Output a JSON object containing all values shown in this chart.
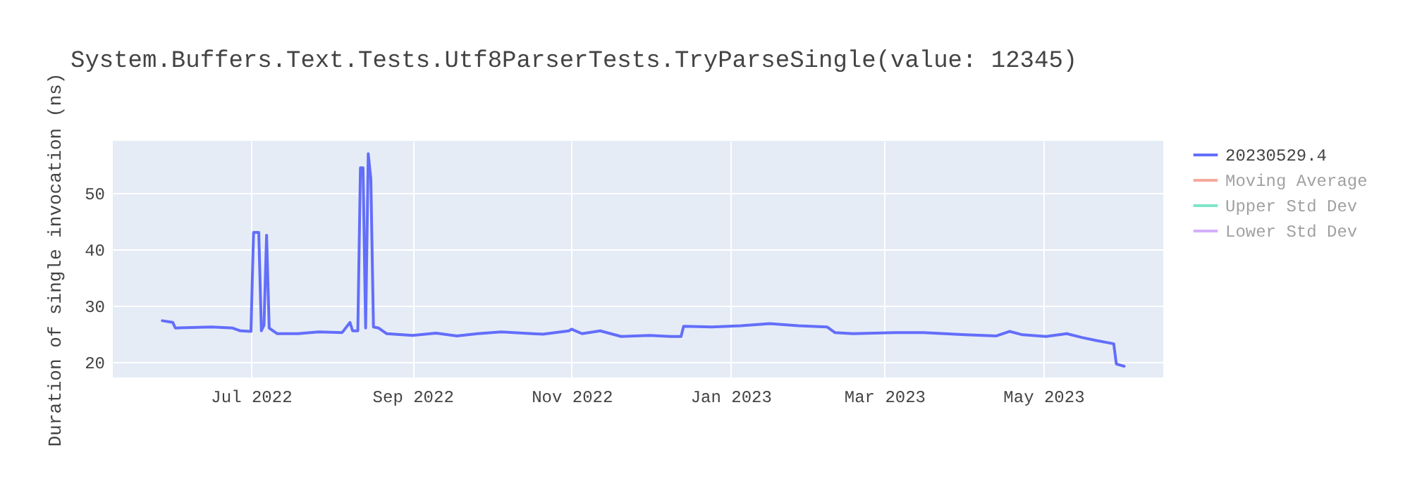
{
  "chart_data": {
    "type": "line",
    "title": "System.Buffers.Text.Tests.Utf8ParserTests.TryParseSingle(value: 12345)",
    "ylabel": "Duration of single invocation (ns)",
    "x": [
      "2022-05-28",
      "2022-06-01",
      "2022-06-02",
      "2022-06-16",
      "2022-06-24",
      "2022-06-27",
      "2022-07-01",
      "2022-07-02",
      "2022-07-04",
      "2022-07-05",
      "2022-07-06",
      "2022-07-07",
      "2022-07-08",
      "2022-07-11",
      "2022-07-19",
      "2022-07-27",
      "2022-08-05",
      "2022-08-08",
      "2022-08-09",
      "2022-08-11",
      "2022-08-12",
      "2022-08-13",
      "2022-08-14",
      "2022-08-15",
      "2022-08-16",
      "2022-08-17",
      "2022-08-19",
      "2022-08-22",
      "2022-09-01",
      "2022-09-10",
      "2022-09-18",
      "2022-09-26",
      "2022-10-05",
      "2022-10-21",
      "2022-10-31",
      "2022-11-01",
      "2022-11-05",
      "2022-11-12",
      "2022-11-20",
      "2022-12-01",
      "2022-12-09",
      "2022-12-13",
      "2022-12-14",
      "2022-12-25",
      "2023-01-05",
      "2023-01-16",
      "2023-01-27",
      "2023-02-07",
      "2023-02-10",
      "2023-02-17",
      "2023-03-05",
      "2023-03-16",
      "2023-04-01",
      "2023-04-13",
      "2023-04-18",
      "2023-04-23",
      "2023-05-02",
      "2023-05-10",
      "2023-05-16",
      "2023-05-21",
      "2023-05-28",
      "2023-05-29",
      "2023-06-01"
    ],
    "series": [
      {
        "name": "20230529.4",
        "color": "#636efa",
        "values": [
          27.3,
          27,
          26,
          26.2,
          26,
          25.5,
          25.4,
          43,
          43,
          25.5,
          26.5,
          42.5,
          26,
          25,
          25,
          25.3,
          25.2,
          27,
          25.5,
          25.5,
          54.5,
          54.5,
          26,
          57,
          52.5,
          26.2,
          26,
          25,
          24.7,
          25.1,
          24.6,
          25,
          25.3,
          24.9,
          25.5,
          25.8,
          25,
          25.5,
          24.5,
          24.7,
          24.5,
          24.5,
          26.3,
          26.2,
          26.4,
          26.8,
          26.4,
          26.2,
          25.2,
          25,
          25.2,
          25.2,
          24.8,
          24.6,
          25.4,
          24.8,
          24.5,
          25,
          24.3,
          23.8,
          23.2,
          19.6,
          19.2
        ]
      },
      {
        "name": "Moving Average",
        "color": "#ef553b",
        "values": [
          null,
          null,
          null,
          null,
          null,
          null,
          null,
          null,
          null,
          null,
          null,
          null,
          null,
          null,
          null,
          null,
          null,
          null,
          null,
          null,
          null,
          null,
          null,
          null,
          null,
          null,
          null,
          null,
          null,
          null,
          null,
          null,
          null,
          null,
          null,
          null,
          null,
          null,
          null,
          null,
          null,
          null,
          null,
          null,
          null,
          null,
          null,
          null,
          null,
          null,
          null,
          null,
          null,
          null,
          null,
          null,
          null,
          null,
          null,
          null,
          null,
          null,
          null
        ]
      },
      {
        "name": "Upper Std Dev",
        "color": "#00cc96",
        "values": [
          null,
          null,
          null,
          null,
          null,
          null,
          null,
          null,
          null,
          null,
          null,
          null,
          null,
          null,
          null,
          null,
          null,
          null,
          null,
          null,
          null,
          null,
          null,
          null,
          null,
          null,
          null,
          null,
          null,
          null,
          null,
          null,
          null,
          null,
          null,
          null,
          null,
          null,
          null,
          null,
          null,
          null,
          null,
          null,
          null,
          null,
          null,
          null,
          null,
          null,
          null,
          null,
          null,
          null,
          null,
          null,
          null,
          null,
          null,
          null,
          null,
          null,
          null
        ]
      },
      {
        "name": "Lower Std Dev",
        "color": "#ab63fa",
        "values": [
          null,
          null,
          null,
          null,
          null,
          null,
          null,
          null,
          null,
          null,
          null,
          null,
          null,
          null,
          null,
          null,
          null,
          null,
          null,
          null,
          null,
          null,
          null,
          null,
          null,
          null,
          null,
          null,
          null,
          null,
          null,
          null,
          null,
          null,
          null,
          null,
          null,
          null,
          null,
          null,
          null,
          null,
          null,
          null,
          null,
          null,
          null,
          null,
          null,
          null,
          null,
          null,
          null,
          null,
          null,
          null,
          null,
          null,
          null,
          null,
          null,
          null,
          null
        ]
      }
    ],
    "xlim": [
      "2022-05-09",
      "2023-06-16"
    ],
    "xticks": [
      {
        "value": "2022-07",
        "label": "Jul 2022"
      },
      {
        "value": "2022-09",
        "label": "Sep 2022"
      },
      {
        "value": "2022-11",
        "label": "Nov 2022"
      },
      {
        "value": "2023-01",
        "label": "Jan 2023"
      },
      {
        "value": "2023-03",
        "label": "Mar 2023"
      },
      {
        "value": "2023-05",
        "label": "May 2023"
      }
    ],
    "ylim": [
      17.2,
      59.3
    ],
    "yticks": [
      20,
      30,
      40,
      50
    ],
    "grid": true,
    "legend": "top right",
    "line_style": "solid",
    "marker": "none"
  }
}
